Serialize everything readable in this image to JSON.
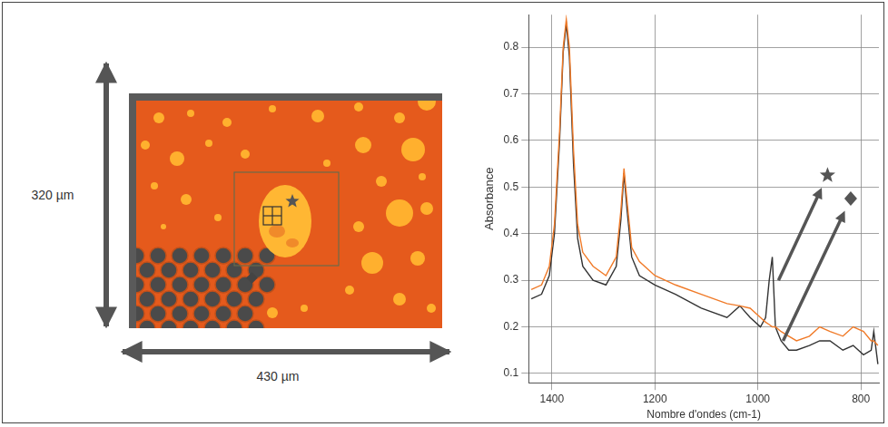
{
  "chart_data": {
    "type": "line",
    "y_label": "Absorbance",
    "x_label": "Nombre d'ondes (cm-1)",
    "x": [
      1440,
      1420,
      1405,
      1395,
      1385,
      1378,
      1372,
      1366,
      1358,
      1350,
      1340,
      1320,
      1295,
      1275,
      1266,
      1260,
      1254,
      1245,
      1230,
      1200,
      1160,
      1110,
      1060,
      1035,
      1015,
      995,
      985,
      978,
      972,
      966,
      955,
      940,
      925,
      900,
      880,
      860,
      835,
      815,
      795,
      780,
      775,
      767
    ],
    "series": [
      {
        "color": "#f07a28",
        "values": [
          0.28,
          0.29,
          0.33,
          0.42,
          0.62,
          0.8,
          0.86,
          0.8,
          0.58,
          0.42,
          0.36,
          0.33,
          0.31,
          0.35,
          0.45,
          0.54,
          0.47,
          0.37,
          0.34,
          0.31,
          0.29,
          0.27,
          0.25,
          0.245,
          0.24,
          0.22,
          0.21,
          0.205,
          0.2,
          0.2,
          0.19,
          0.18,
          0.17,
          0.18,
          0.2,
          0.19,
          0.18,
          0.2,
          0.19,
          0.17,
          0.17,
          0.16
        ]
      },
      {
        "color": "#333333",
        "values": [
          0.26,
          0.27,
          0.31,
          0.4,
          0.6,
          0.79,
          0.85,
          0.78,
          0.55,
          0.39,
          0.33,
          0.3,
          0.29,
          0.33,
          0.43,
          0.53,
          0.45,
          0.35,
          0.31,
          0.29,
          0.27,
          0.24,
          0.22,
          0.245,
          0.22,
          0.2,
          0.22,
          0.3,
          0.35,
          0.2,
          0.17,
          0.15,
          0.15,
          0.16,
          0.17,
          0.17,
          0.15,
          0.16,
          0.14,
          0.15,
          0.19,
          0.12
        ]
      }
    ],
    "xlim": [
      1445,
      765
    ],
    "xticks": [
      1400,
      1200,
      1000,
      800
    ],
    "ylim": [
      0.08,
      0.87
    ],
    "yticks": [
      0.1,
      0.2,
      0.3,
      0.4,
      0.5,
      0.6,
      0.7,
      0.8
    ],
    "grid": true,
    "annotations": [
      {
        "marker": "star",
        "from": [
          960,
          0.3
        ],
        "to": [
          867,
          0.52
        ]
      },
      {
        "marker": "diamond",
        "from": [
          951,
          0.17
        ],
        "to": [
          822,
          0.47
        ]
      }
    ]
  },
  "image_panel": {
    "height_label": "320 µm",
    "width_label": "430 µm"
  }
}
